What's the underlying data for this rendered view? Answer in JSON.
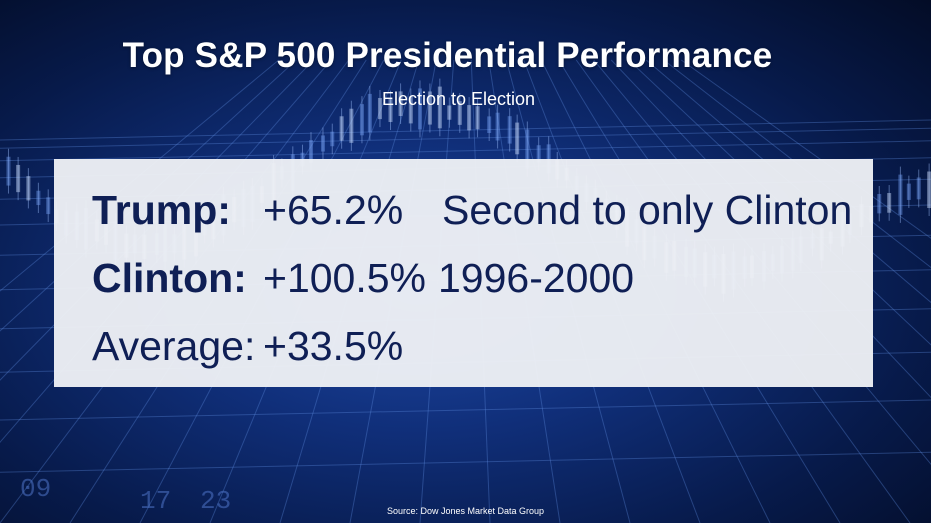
{
  "title": "Top S&P 500 Presidential Performance",
  "subtitle": "Election to Election",
  "rows": [
    {
      "label": "Trump:",
      "value": "+65.2%",
      "note": "Second to only Clinton"
    },
    {
      "label": "Clinton:",
      "value": "+100.5%",
      "note": "1996-2000"
    },
    {
      "label": "Average:",
      "value": "+33.5%"
    }
  ],
  "source": "Source: Dow Jones Market Data Group",
  "background_digits": [
    "09",
    "17",
    "23"
  ],
  "colors": {
    "panel_text": "#0f1f55",
    "panel_bg": "#eef0f5",
    "background_dark": "#071a4a",
    "background_glow": "#1f4aa8"
  }
}
